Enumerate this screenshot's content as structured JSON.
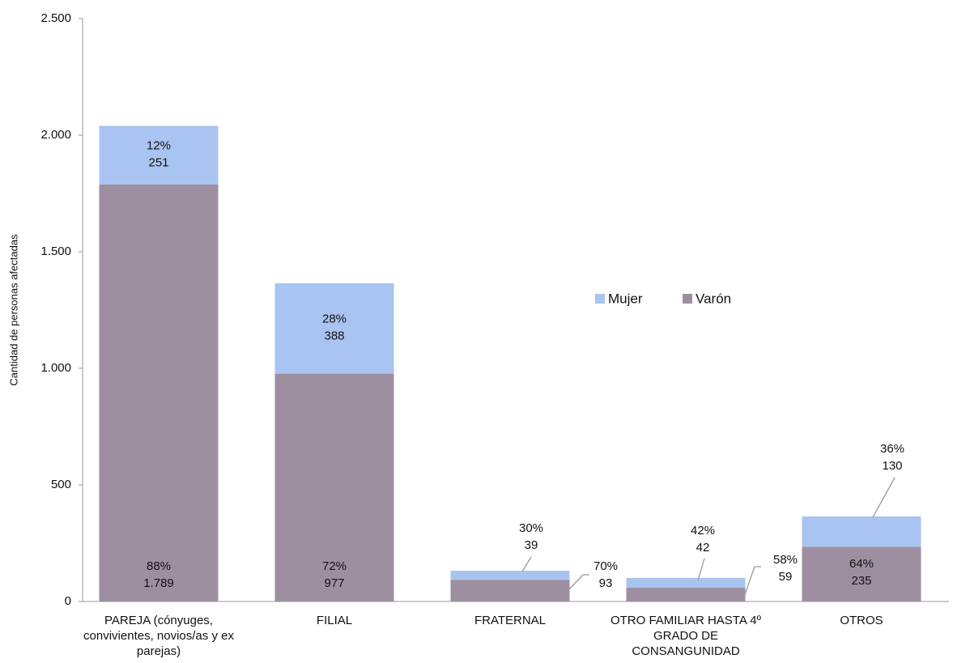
{
  "chart_data": {
    "type": "stacked-bar",
    "y_label": "Cantidad de personas afectadas",
    "categories": [
      "PAREJA (cónyuges, convivientes, novios/as y ex parejas)",
      "FILIAL",
      "FRATERNAL",
      "OTRO FAMILIAR HASTA 4º GRADO DE CONSANGUNIDAD",
      "OTROS"
    ],
    "series": [
      {
        "name": "Varón",
        "color": "#9d8fa0",
        "values": [
          1789,
          977,
          93,
          59,
          235
        ],
        "value_labels": [
          "1.789",
          "977",
          "93",
          "59",
          "235"
        ],
        "share_labels": [
          "88%",
          "72%",
          "70%",
          "58%",
          "64%"
        ]
      },
      {
        "name": "Mujer",
        "color": "#a9c4f0",
        "values": [
          251,
          388,
          39,
          42,
          130
        ],
        "share_labels": [
          "12%",
          "28%",
          "30%",
          "42%",
          "36%"
        ]
      }
    ],
    "ylim": [
      0,
      2500
    ],
    "yticks": [
      0,
      500,
      {
        "value": 1000,
        "label": "1.000"
      },
      {
        "value": 1500,
        "label": "1.500"
      },
      {
        "value": 2000,
        "label": "2.000"
      },
      {
        "value": 2500,
        "label": "2.500"
      }
    ],
    "legend": "center-right"
  }
}
